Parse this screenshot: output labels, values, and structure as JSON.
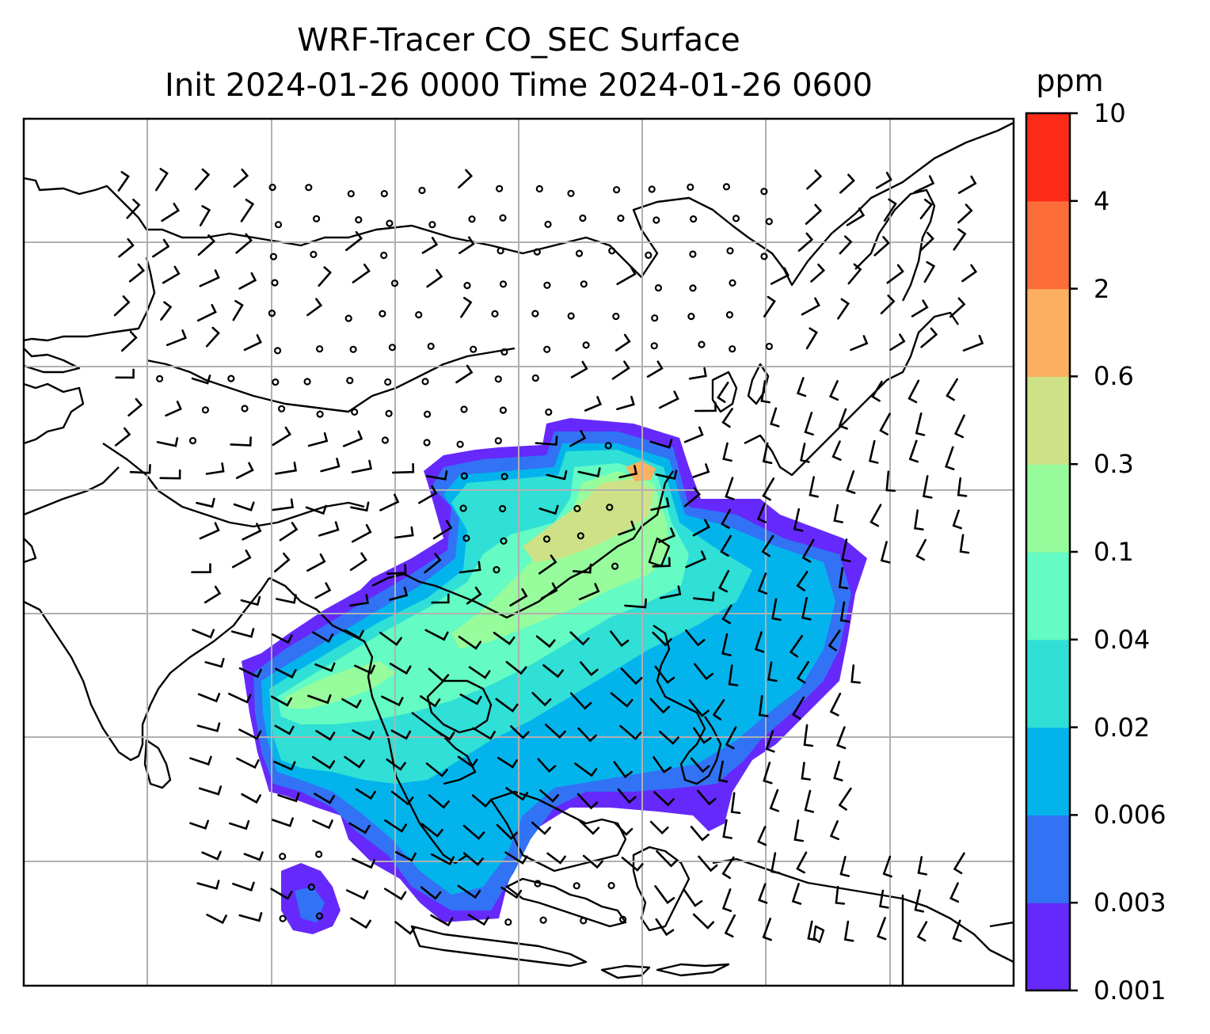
{
  "title": {
    "line1": "WRF-Tracer CO_SEC Surface",
    "line2": "Init 2024-01-26 0000 Time 2024-01-26 0600"
  },
  "colorbar": {
    "unit": "ppm",
    "ticks": [
      "0.001",
      "0.003",
      "0.006",
      "0.02",
      "0.04",
      "0.1",
      "0.3",
      "0.6",
      "2",
      "4",
      "10"
    ],
    "colors": [
      "#6629fb",
      "#3173f4",
      "#03b4ec",
      "#30dfd6",
      "#64fbc4",
      "#97fc9c",
      "#cfe187",
      "#fcb05f",
      "#fc6d3a",
      "#fc2b17"
    ]
  },
  "map": {
    "gridlines": true,
    "coastline_color": "#000000",
    "gridline_color": "#b0b0b0",
    "wind_barbs": "black, calm circles over the interior, barbs elsewhere"
  }
}
